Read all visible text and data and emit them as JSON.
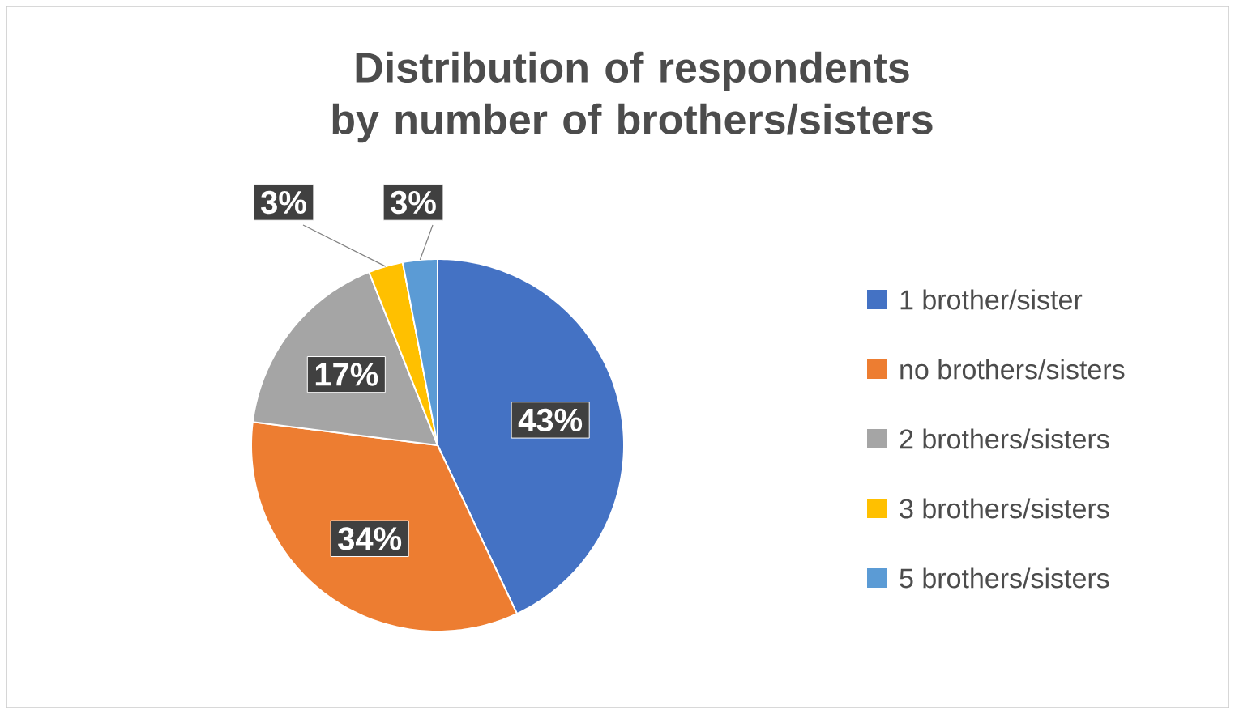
{
  "chart_data": {
    "type": "pie",
    "title": "Distribution of respondents by number of brothers/sisters",
    "categories": [
      "1 brother/sister",
      "no brothers/sisters",
      "2 brothers/sisters",
      "3 brothers/sisters",
      "5 brothers/sisters"
    ],
    "values": [
      43,
      34,
      17,
      3,
      3
    ],
    "value_labels": [
      "43%",
      "34%",
      "17%",
      "3%",
      "3%"
    ],
    "colors": [
      "#4472c4",
      "#ed7d31",
      "#a5a5a5",
      "#ffc000",
      "#5b9bd5"
    ],
    "legend": "right"
  }
}
